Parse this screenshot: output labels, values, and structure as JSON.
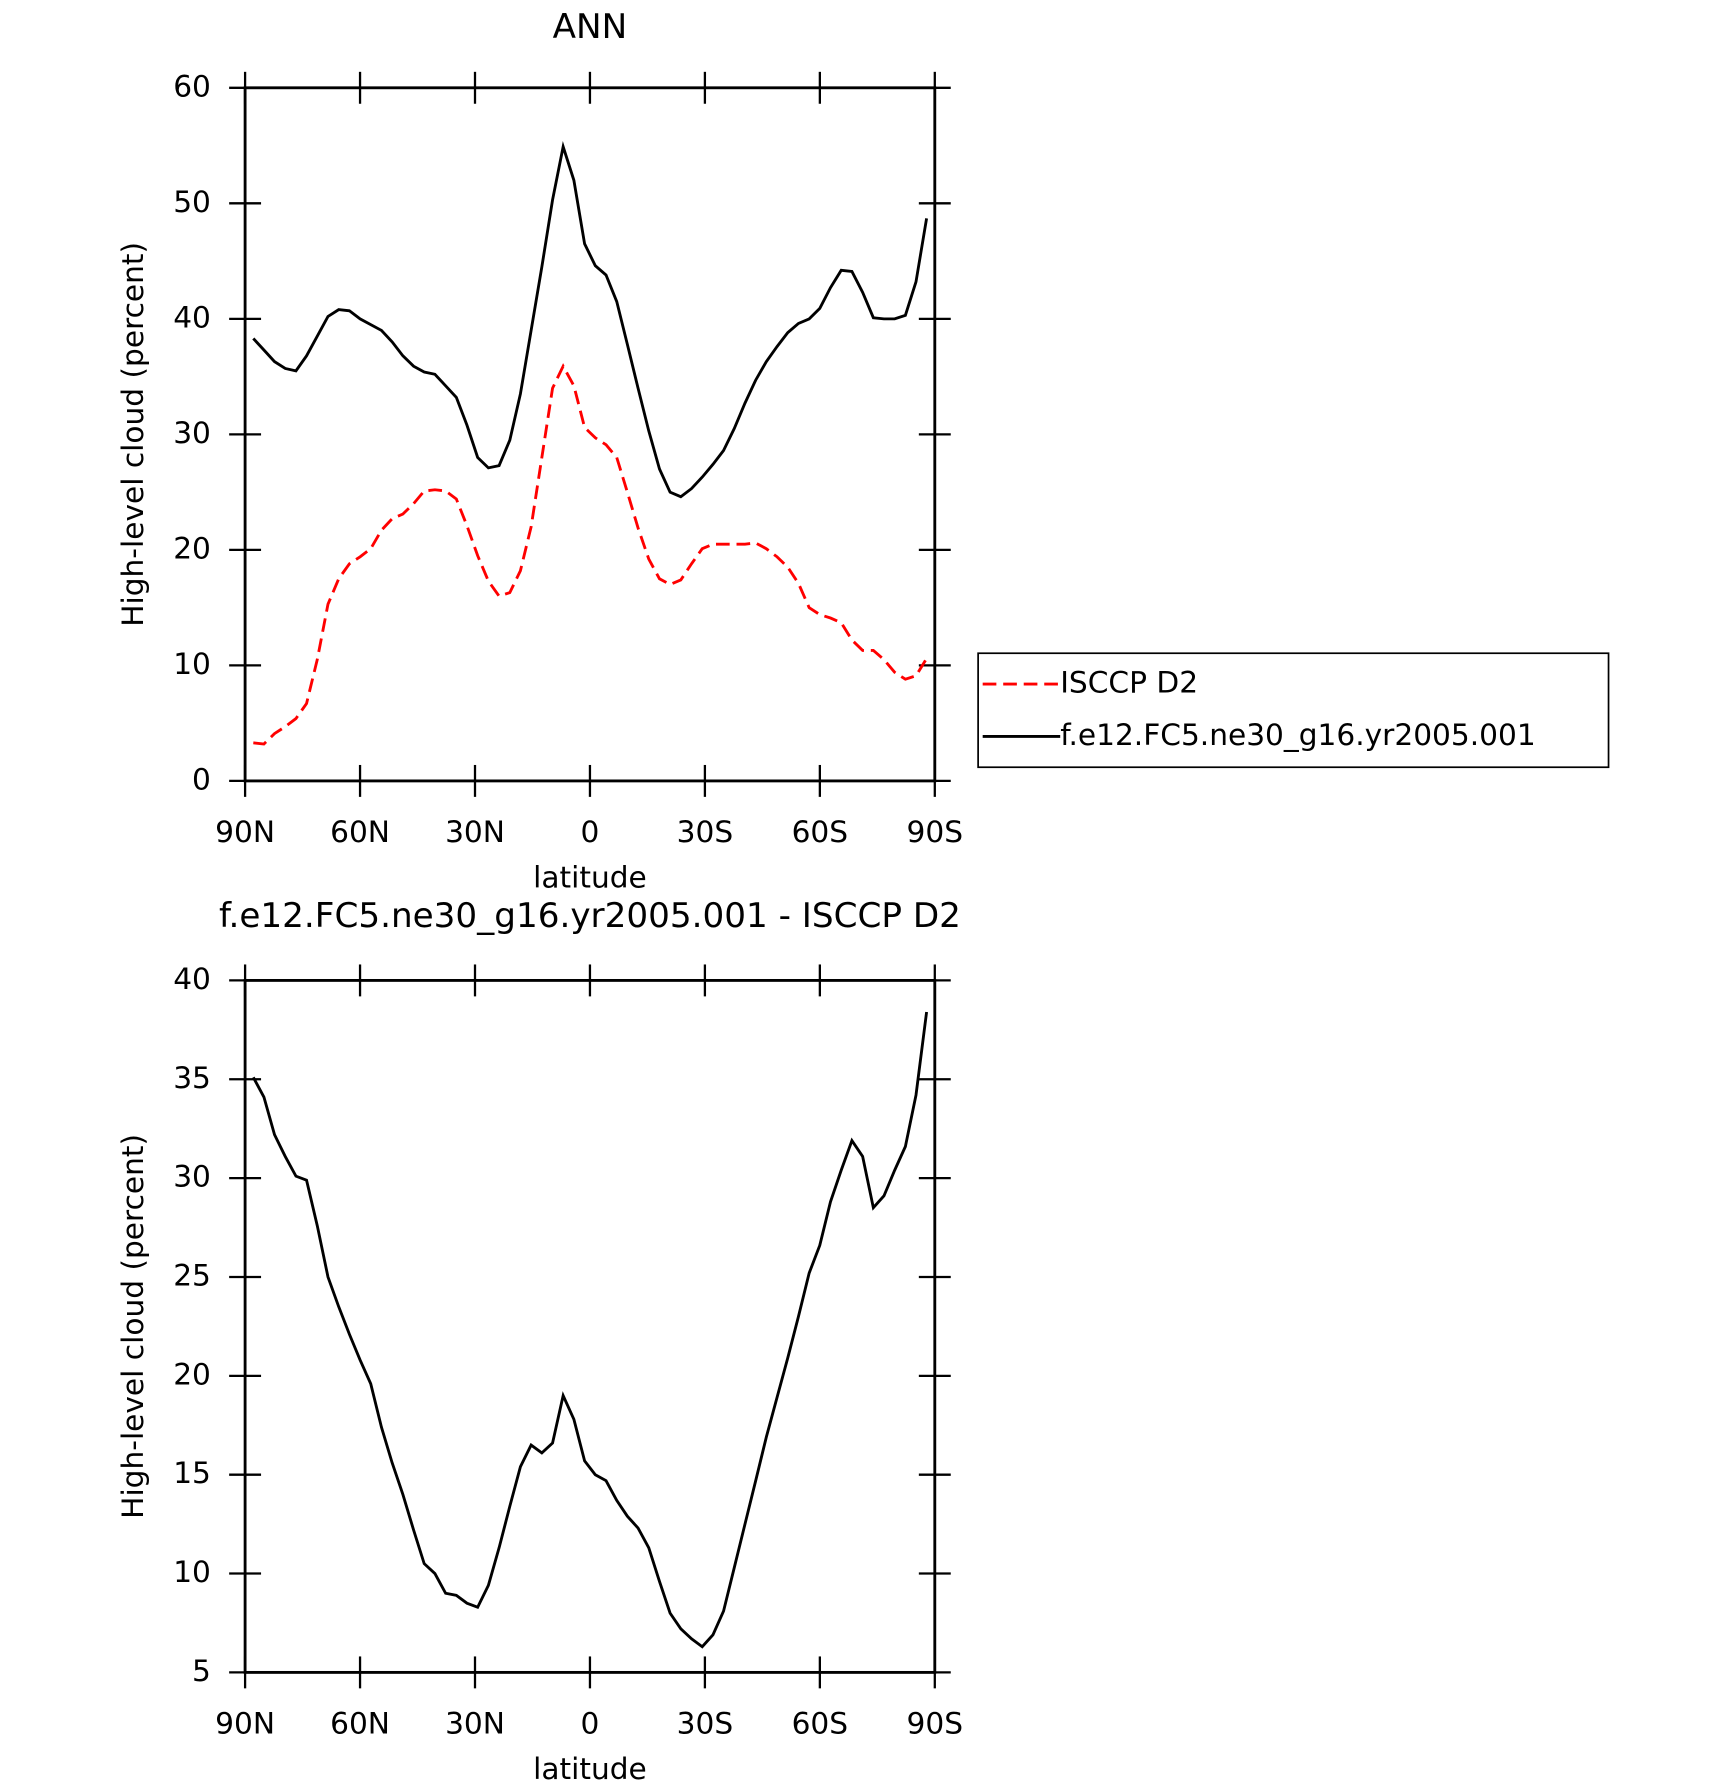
{
  "chart_data": [
    {
      "type": "line",
      "title": "ANN",
      "xlabel": "latitude",
      "ylabel": "High-level cloud (percent)",
      "x": [
        87.86,
        85.1,
        82.31,
        79.53,
        76.74,
        73.95,
        71.16,
        68.37,
        65.58,
        62.79,
        59.99,
        57.2,
        54.41,
        51.62,
        48.83,
        46.04,
        43.25,
        40.46,
        37.67,
        34.88,
        32.09,
        29.3,
        26.51,
        23.72,
        20.93,
        18.14,
        15.35,
        12.56,
        9.77,
        6.98,
        4.19,
        1.4,
        -1.4,
        -4.19,
        -6.98,
        -9.77,
        -12.56,
        -15.35,
        -18.14,
        -20.93,
        -23.72,
        -26.51,
        -29.3,
        -32.09,
        -34.88,
        -37.67,
        -40.46,
        -43.25,
        -46.04,
        -48.83,
        -51.62,
        -54.41,
        -57.2,
        -59.99,
        -62.79,
        -65.58,
        -68.37,
        -71.16,
        -73.95,
        -76.74,
        -79.53,
        -82.31,
        -85.1,
        -87.86
      ],
      "series": [
        {
          "name": "ISCCP D2",
          "color": "#ff0000",
          "dashed": true,
          "values": [
            3.3,
            3.2,
            4.1,
            4.7,
            5.4,
            6.7,
            10.5,
            15.3,
            17.5,
            18.8,
            19.4,
            20.1,
            21.7,
            22.7,
            23.1,
            24.0,
            25.1,
            25.2,
            25.1,
            24.4,
            22.1,
            19.5,
            17.3,
            16.0,
            16.3,
            18.2,
            22.0,
            28.0,
            34.0,
            35.9,
            34.2,
            30.6,
            29.7,
            29.1,
            28.0,
            25.0,
            21.9,
            19.2,
            17.5,
            17.0,
            17.4,
            18.8,
            20.1,
            20.5,
            20.5,
            20.5,
            20.5,
            20.6,
            20.1,
            19.4,
            18.5,
            17.1,
            15.0,
            14.4,
            14.1,
            13.7,
            12.2,
            11.3,
            11.3,
            10.5,
            9.4,
            8.8,
            9.1,
            10.6
          ]
        },
        {
          "name": "f.e12.FC5.ne30_g16.yr2005.001",
          "color": "#000000",
          "dashed": false,
          "values": [
            38.3,
            37.3,
            36.3,
            35.7,
            35.5,
            36.8,
            38.5,
            40.2,
            40.8,
            40.7,
            40.0,
            39.5,
            39.0,
            38.0,
            36.8,
            35.9,
            35.4,
            35.2,
            34.2,
            33.2,
            30.8,
            28.0,
            27.1,
            27.3,
            29.5,
            33.5,
            39.0,
            44.5,
            50.3,
            54.9,
            52.0,
            46.5,
            44.6,
            43.8,
            41.5,
            37.8,
            34.0,
            30.3,
            27.0,
            25.0,
            24.6,
            25.3,
            26.3,
            27.4,
            28.6,
            30.5,
            32.7,
            34.7,
            36.3,
            37.6,
            38.8,
            39.6,
            40.0,
            40.9,
            42.7,
            44.2,
            44.1,
            42.3,
            40.1,
            40.0,
            40.0,
            40.3,
            43.2,
            48.7
          ]
        }
      ],
      "xlim": [
        90,
        -90
      ],
      "xticks": [
        {
          "value": 90,
          "label": "90N"
        },
        {
          "value": 60,
          "label": "60N"
        },
        {
          "value": 30,
          "label": "30N"
        },
        0,
        {
          "value": -30,
          "label": "30S"
        },
        {
          "value": -60,
          "label": "60S"
        },
        {
          "value": -90,
          "label": "90S"
        }
      ],
      "ylim": [
        0,
        60
      ],
      "yticks": [
        0,
        10,
        20,
        30,
        40,
        50,
        60
      ],
      "legend": "right"
    },
    {
      "type": "line",
      "title": "f.e12.FC5.ne30_g16.yr2005.001 - ISCCP D2",
      "xlabel": "latitude",
      "ylabel": "High-level cloud (percent)",
      "x": [
        87.86,
        85.1,
        82.31,
        79.53,
        76.74,
        73.95,
        71.16,
        68.37,
        65.58,
        62.79,
        59.99,
        57.2,
        54.41,
        51.62,
        48.83,
        46.04,
        43.25,
        40.46,
        37.67,
        34.88,
        32.09,
        29.3,
        26.51,
        23.72,
        20.93,
        18.14,
        15.35,
        12.56,
        9.77,
        6.98,
        4.19,
        1.4,
        -1.4,
        -4.19,
        -6.98,
        -9.77,
        -12.56,
        -15.35,
        -18.14,
        -20.93,
        -23.72,
        -26.51,
        -29.3,
        -32.09,
        -34.88,
        -37.67,
        -40.46,
        -43.25,
        -46.04,
        -48.83,
        -51.62,
        -54.41,
        -57.2,
        -59.99,
        -62.79,
        -65.58,
        -68.37,
        -71.16,
        -73.95,
        -76.74,
        -79.53,
        -82.31,
        -85.1,
        -87.86
      ],
      "series": [
        {
          "color": "#000000",
          "dashed": false,
          "values": [
            35.1,
            34.1,
            32.2,
            31.1,
            30.1,
            29.9,
            27.6,
            25.0,
            23.5,
            22.1,
            20.8,
            19.6,
            17.4,
            15.6,
            14.0,
            12.2,
            10.5,
            10.0,
            9.0,
            8.9,
            8.5,
            8.3,
            9.4,
            11.3,
            13.4,
            15.4,
            16.5,
            16.1,
            16.6,
            19.0,
            17.8,
            15.7,
            15.0,
            14.7,
            13.7,
            12.9,
            12.3,
            11.3,
            9.6,
            8.0,
            7.2,
            6.7,
            6.3,
            6.9,
            8.1,
            10.3,
            12.5,
            14.7,
            16.9,
            18.9,
            20.9,
            23.0,
            25.2,
            26.6,
            28.8,
            30.4,
            31.9,
            31.1,
            28.5,
            29.1,
            30.4,
            31.6,
            34.2,
            38.4
          ]
        }
      ],
      "xlim": [
        90,
        -90
      ],
      "xticks": [
        {
          "value": 90,
          "label": "90N"
        },
        {
          "value": 60,
          "label": "60N"
        },
        {
          "value": 30,
          "label": "30N"
        },
        0,
        {
          "value": -30,
          "label": "30S"
        },
        {
          "value": -60,
          "label": "60S"
        },
        {
          "value": -90,
          "label": "90S"
        }
      ],
      "ylim": [
        5,
        40
      ],
      "yticks": [
        5,
        10,
        15,
        20,
        25,
        30,
        35,
        40
      ]
    }
  ]
}
